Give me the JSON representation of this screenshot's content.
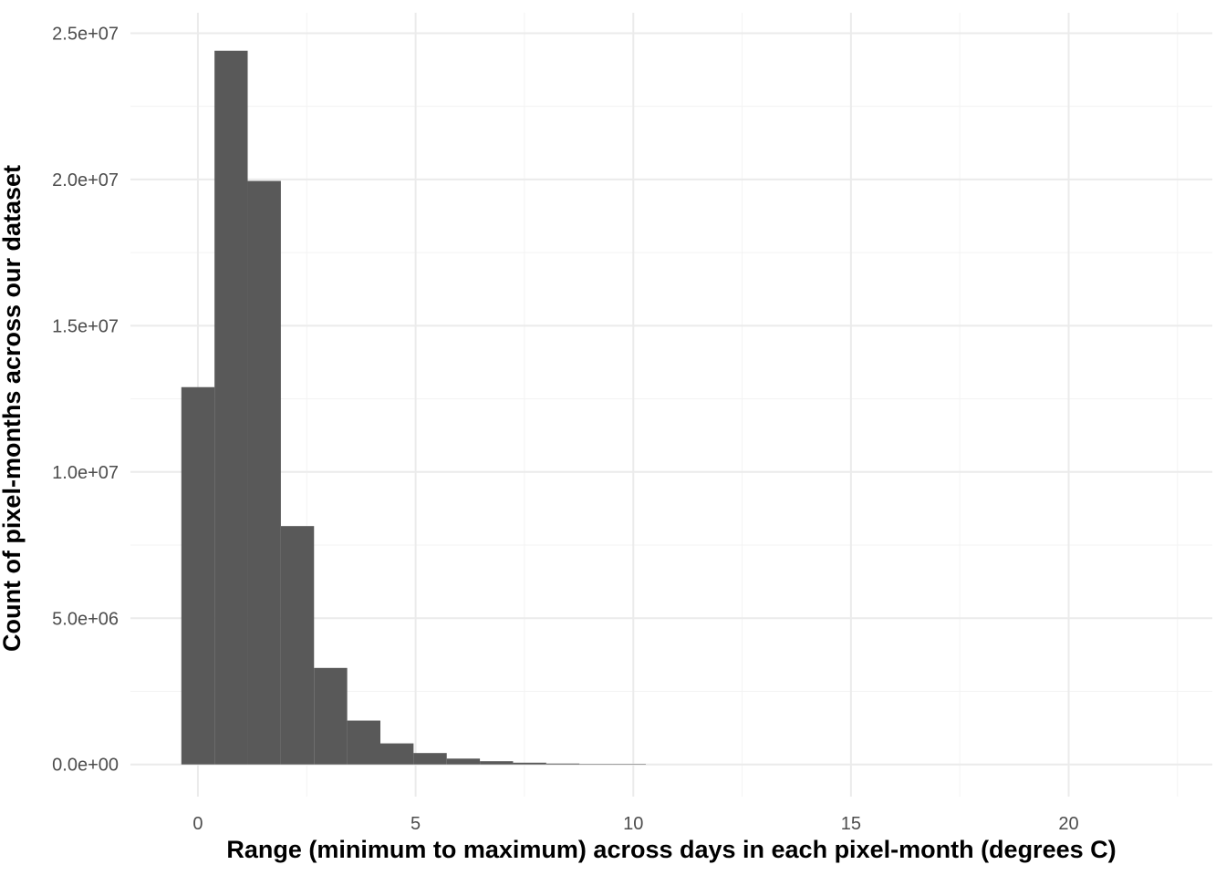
{
  "chart_data": {
    "type": "bar",
    "title": "",
    "xlabel": "Range (minimum to maximum) across days in each pixel-month (degrees C)",
    "ylabel": "Count of pixel-months across our dataset",
    "xlim": [
      -1.55,
      23.3
    ],
    "ylim": [
      -1100000,
      25700000
    ],
    "x_ticks": [
      0,
      5,
      10,
      15,
      20
    ],
    "x_tick_labels": [
      "0",
      "5",
      "10",
      "15",
      "20"
    ],
    "x_minor_ticks": [
      2.5,
      7.5,
      12.5,
      17.5,
      22.5
    ],
    "y_ticks": [
      0,
      5000000,
      10000000,
      15000000,
      20000000,
      25000000
    ],
    "y_tick_labels": [
      "0.0e+00",
      "5.0e+06",
      "1.0e+07",
      "1.5e+07",
      "2.0e+07",
      "2.5e+07"
    ],
    "y_minor_ticks": [
      2500000,
      7500000,
      12500000,
      17500000,
      22500000
    ],
    "bin_width": 0.762,
    "bins": [
      {
        "x_start": -0.381,
        "x_end": 0.381,
        "count": 12900000
      },
      {
        "x_start": 0.381,
        "x_end": 1.143,
        "count": 24400000
      },
      {
        "x_start": 1.143,
        "x_end": 1.905,
        "count": 19950000
      },
      {
        "x_start": 1.905,
        "x_end": 2.667,
        "count": 8150000
      },
      {
        "x_start": 2.667,
        "x_end": 3.429,
        "count": 3300000
      },
      {
        "x_start": 3.429,
        "x_end": 4.191,
        "count": 1500000
      },
      {
        "x_start": 4.191,
        "x_end": 4.953,
        "count": 720000
      },
      {
        "x_start": 4.953,
        "x_end": 5.715,
        "count": 390000
      },
      {
        "x_start": 5.715,
        "x_end": 6.477,
        "count": 200000
      },
      {
        "x_start": 6.477,
        "x_end": 7.239,
        "count": 110000
      },
      {
        "x_start": 7.239,
        "x_end": 8.001,
        "count": 60000
      },
      {
        "x_start": 8.001,
        "x_end": 8.763,
        "count": 30000
      },
      {
        "x_start": 8.763,
        "x_end": 9.525,
        "count": 15000
      },
      {
        "x_start": 9.525,
        "x_end": 10.287,
        "count": 8000
      }
    ],
    "grid": true,
    "legend": "none",
    "colors": {
      "bar": "#595959",
      "grid_major": "#ebebeb",
      "grid_minor": "#f3f3f3",
      "tick_text": "#4d4d4d",
      "title_text": "#000000",
      "background": "#ffffff"
    }
  }
}
